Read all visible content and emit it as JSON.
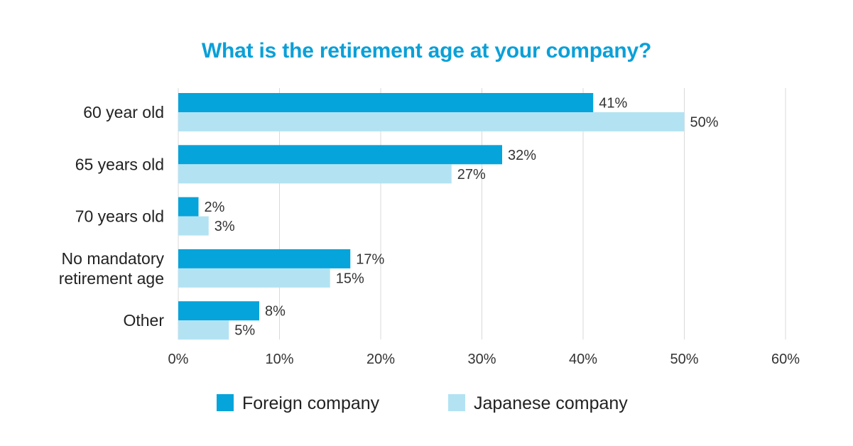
{
  "colors": {
    "title": "#0aa0d8",
    "foreign": "#05a4da",
    "japanese": "#b3e3f3",
    "grid": "#d9d9d9"
  },
  "chart_data": {
    "type": "bar",
    "orientation": "horizontal",
    "title": "What is the retirement age at your company?",
    "categories": [
      [
        "60 year old"
      ],
      [
        "65 years old"
      ],
      [
        "70 years old"
      ],
      [
        "No mandatory",
        "retirement age"
      ],
      [
        "Other"
      ]
    ],
    "series": [
      {
        "name": "Foreign company",
        "values": [
          41,
          32,
          2,
          17,
          8
        ],
        "labels": [
          "41%",
          "32%",
          "2%",
          "17%",
          "8%"
        ]
      },
      {
        "name": "Japanese company",
        "values": [
          50,
          27,
          3,
          15,
          5
        ],
        "labels": [
          "50%",
          "27%",
          "3%",
          "15%",
          "5%"
        ]
      }
    ],
    "xlim": [
      0,
      60
    ],
    "xticks": [
      "0%",
      "10%",
      "20%",
      "30%",
      "40%",
      "50%",
      "60%"
    ],
    "grid": true,
    "legend_position": "bottom"
  }
}
